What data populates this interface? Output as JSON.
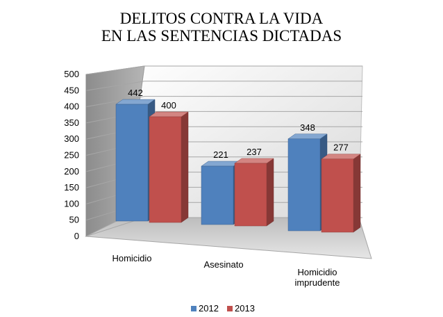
{
  "chart_data": {
    "type": "bar",
    "title_lines": [
      "DELITOS CONTRA LA VIDA",
      "EN LAS SENTENCIAS DICTADAS"
    ],
    "categories": [
      "Homicidio",
      "Asesinato",
      "Homicidio imprudente"
    ],
    "category_label_lines": [
      [
        "Homicidio"
      ],
      [
        "Asesinato"
      ],
      [
        "Homicidio",
        "imprudente"
      ]
    ],
    "series": [
      {
        "name": "2012",
        "values": [
          442,
          221,
          348
        ],
        "color": "#4f81bd"
      },
      {
        "name": "2013",
        "values": [
          400,
          237,
          277
        ],
        "color": "#c0504d"
      }
    ],
    "ylim": [
      0,
      500
    ],
    "yticks": [
      "0",
      "50",
      "100",
      "150",
      "200",
      "250",
      "300",
      "350",
      "400",
      "450",
      "500"
    ],
    "grid": true,
    "legend_position": "bottom",
    "style": "3d-clustered-column"
  }
}
